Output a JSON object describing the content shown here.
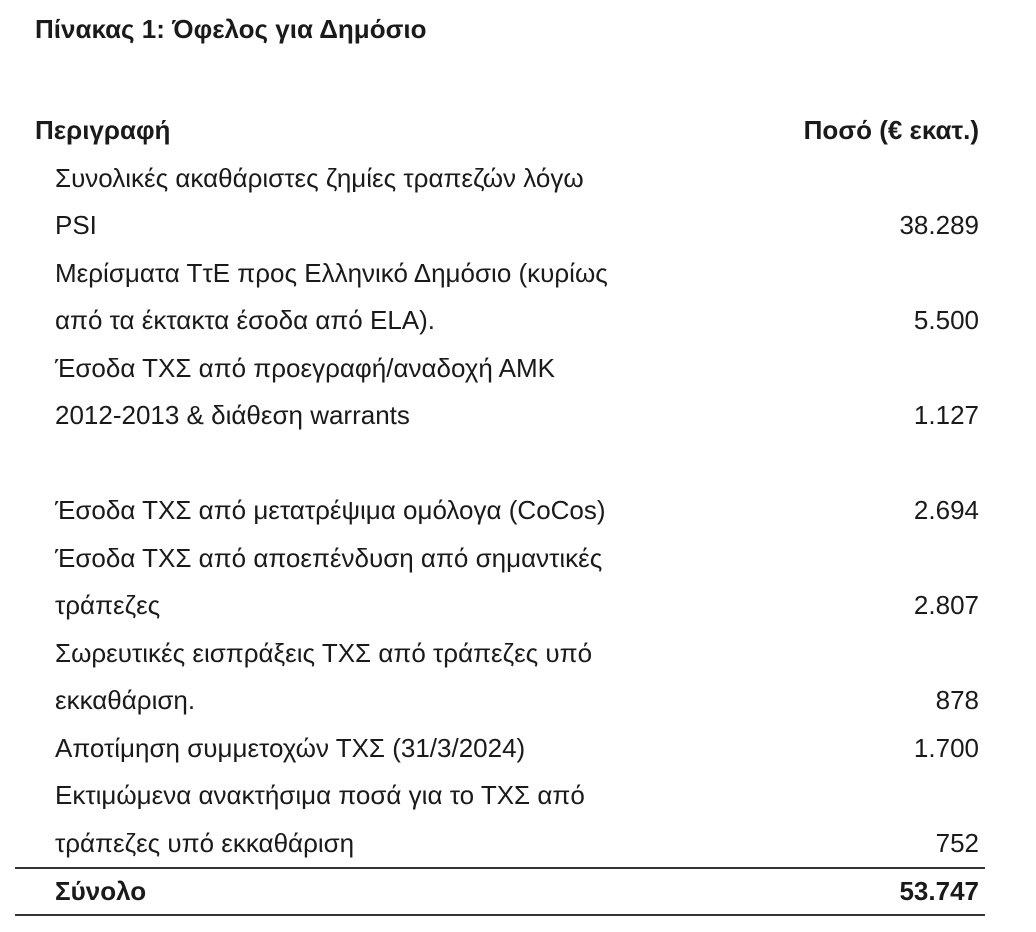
{
  "title": "Πίνακας 1: Όφελος για Δημόσιο",
  "header": {
    "description": "Περιγραφή",
    "amount": "Ποσό (€ εκατ.)"
  },
  "rows": [
    {
      "lines": [
        "Συνολικές ακαθάριστες ζημίες τραπεζών λόγω",
        "PSI"
      ],
      "value": "38.289"
    },
    {
      "lines": [
        "Μερίσματα ΤτΕ προς Ελληνικό Δημόσιο (κυρίως",
        "από τα έκτακτα έσοδα από ELA)."
      ],
      "value": "5.500"
    },
    {
      "lines": [
        "Έσοδα ΤΧΣ από προεγραφή/αναδοχή ΑΜΚ",
        "2012-2013 & διάθεση warrants",
        ""
      ],
      "value": "1.127"
    },
    {
      "lines": [
        "Έσοδα ΤΧΣ από μετατρέψιμα ομόλογα (CoCos)"
      ],
      "value": "2.694"
    },
    {
      "lines": [
        "Έσοδα ΤΧΣ από αποεπένδυση από σημαντικές",
        "τράπεζες"
      ],
      "value": "2.807"
    },
    {
      "lines": [
        "Σωρευτικές εισπράξεις ΤΧΣ από τράπεζες υπό",
        "εκκαθάριση."
      ],
      "value": "878"
    },
    {
      "lines": [
        "Αποτίμηση συμμετοχών ΤΧΣ (31/3/2024)"
      ],
      "value": "1.700"
    },
    {
      "lines": [
        "Εκτιμώμενα ανακτήσιμα ποσά για το ΤΧΣ από",
        "τράπεζες υπό εκκαθάριση"
      ],
      "value": "752"
    }
  ],
  "total": {
    "label": "Σύνολο",
    "value": "53.747"
  }
}
